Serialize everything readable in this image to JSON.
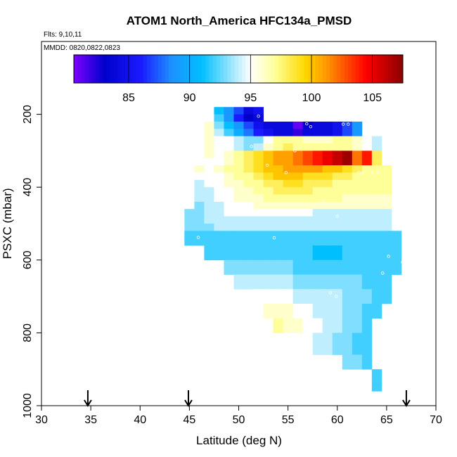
{
  "chart_data": {
    "type": "heatmap",
    "title": "ATOM1 North_America HFC134a_PMSD",
    "flights_label": "Flts: 9,10,11",
    "dates_label": "MMDD: 0820,0822,0823",
    "xlabel": "Latitude (deg N)",
    "ylabel": "PSXC (mbar)",
    "xlim": [
      30,
      70
    ],
    "ylim": [
      1000,
      0
    ],
    "x_ticks": [
      "30",
      "35",
      "40",
      "45",
      "50",
      "55",
      "60",
      "65",
      "70"
    ],
    "y_ticks": [
      "200",
      "400",
      "600",
      "800",
      "1000"
    ],
    "colorbar": {
      "min": 80.5,
      "max": 107.5,
      "ticks": [
        "85",
        "90",
        "95",
        "100",
        "105"
      ],
      "colors": [
        "#7f00ff",
        "#0000cc",
        "#1a1aff",
        "#1e90ff",
        "#00bfff",
        "#ffffff",
        "#ffff99",
        "#ffd700",
        "#ff8c00",
        "#ff0000",
        "#8b0000"
      ]
    },
    "flight_arrows_lat": [
      34.7,
      44.9,
      67.0
    ],
    "row_pressure_step": 20,
    "col_lat_step": 1,
    "rows": [
      {
        "p": 190,
        "lat0": 47,
        "values": [
          95,
          91,
          89,
          87,
          84,
          85
        ]
      },
      {
        "p": 210,
        "lat0": 47,
        "values": [
          95,
          92,
          89,
          86,
          83,
          84
        ]
      },
      {
        "p": 230,
        "lat0": 47,
        "values": [
          96,
          93,
          91,
          89,
          87,
          85,
          84,
          84,
          84,
          81,
          83,
          84,
          84,
          85,
          87,
          89
        ]
      },
      {
        "p": 250,
        "lat0": 47,
        "values": [
          96,
          94,
          92,
          90,
          88,
          86,
          85,
          84,
          84,
          82,
          84,
          84,
          84,
          85,
          87,
          89
        ]
      },
      {
        "p": 270,
        "lat0": 47,
        "values": [
          96,
          95,
          95,
          94,
          93,
          93,
          95,
          97,
          97,
          97,
          96,
          96,
          96,
          97,
          97,
          96,
          95,
          94
        ]
      },
      {
        "p": 290,
        "lat0": 47,
        "values": [
          96,
          95,
          95,
          94,
          93,
          94,
          96,
          97,
          98,
          97,
          97,
          97,
          97,
          97,
          97,
          96,
          95,
          94
        ]
      },
      {
        "p": 310,
        "lat0": 47,
        "values": [
          96,
          95,
          96,
          97,
          98,
          99,
          100,
          101,
          101,
          102,
          103,
          104,
          105,
          106,
          107,
          102,
          104,
          98
        ]
      },
      {
        "p": 330,
        "lat0": 47,
        "values": [
          95,
          95,
          96,
          97,
          98,
          99,
          100,
          101,
          101,
          102,
          103,
          104,
          105,
          106,
          107,
          102,
          104,
          98
        ]
      },
      {
        "p": 350,
        "lat0": 46,
        "values": [
          96,
          95,
          96,
          97,
          97,
          98,
          99,
          100,
          100,
          101,
          101,
          101,
          101,
          100,
          100,
          99,
          98,
          97,
          97,
          97
        ]
      },
      {
        "p": 370,
        "lat0": 46,
        "values": [
          95,
          95,
          95,
          96,
          97,
          97,
          98,
          99,
          100,
          100,
          100,
          99,
          99,
          99,
          98,
          98,
          97,
          97,
          97,
          97
        ]
      },
      {
        "p": 390,
        "lat0": 46,
        "values": [
          94,
          95,
          95,
          96,
          96,
          97,
          97,
          98,
          98,
          99,
          99,
          98,
          98,
          98,
          97,
          97,
          97,
          97,
          97,
          97
        ]
      },
      {
        "p": 410,
        "lat0": 46,
        "values": [
          94,
          94,
          95,
          95,
          96,
          96,
          97,
          97,
          98,
          98,
          98,
          98,
          97,
          97,
          97,
          97,
          97,
          97,
          97,
          97
        ]
      },
      {
        "p": 430,
        "lat0": 46,
        "values": [
          94,
          94,
          95,
          95,
          96,
          96,
          96,
          97,
          97,
          97,
          97,
          97,
          97,
          97,
          97,
          96,
          96,
          96,
          96,
          96
        ]
      },
      {
        "p": 450,
        "lat0": 46,
        "values": [
          93,
          94,
          94,
          95,
          95,
          95,
          96,
          96,
          96,
          96,
          96,
          96,
          96,
          96,
          96,
          96,
          96,
          96,
          96,
          96
        ]
      },
      {
        "p": 470,
        "lat0": 45,
        "values": [
          93,
          93,
          94,
          94,
          95,
          95,
          95,
          95,
          95,
          95,
          95,
          95,
          95,
          94,
          94,
          94,
          94,
          94,
          94,
          94,
          94
        ]
      },
      {
        "p": 490,
        "lat0": 45,
        "values": [
          93,
          93,
          94,
          94,
          94,
          94,
          94,
          94,
          94,
          94,
          94,
          94,
          94,
          94,
          94,
          94,
          94,
          94,
          94,
          94,
          94
        ]
      },
      {
        "p": 510,
        "lat0": 45,
        "values": [
          93,
          93,
          93,
          94,
          94,
          94,
          94,
          94,
          94,
          94,
          94,
          94,
          94,
          94,
          94,
          94,
          94,
          94,
          94,
          94,
          94
        ]
      },
      {
        "p": 530,
        "lat0": 45,
        "values": [
          92,
          92,
          92,
          92,
          92,
          92,
          92,
          92,
          92,
          92,
          92,
          92,
          92,
          92,
          92,
          92,
          92,
          92,
          92,
          92,
          92,
          92
        ]
      },
      {
        "p": 550,
        "lat0": 45,
        "values": [
          92,
          92,
          92,
          92,
          92,
          92,
          92,
          92,
          92,
          92,
          92,
          92,
          92,
          92,
          92,
          92,
          92,
          92,
          92,
          92,
          92,
          92
        ]
      },
      {
        "p": 570,
        "lat0": 47,
        "values": [
          92,
          92,
          92,
          92,
          92,
          92,
          92,
          92,
          92,
          92,
          92,
          91,
          91,
          91,
          92,
          92,
          92,
          92,
          92,
          92
        ]
      },
      {
        "p": 590,
        "lat0": 47,
        "values": [
          92,
          92,
          92,
          92,
          92,
          92,
          92,
          92,
          92,
          92,
          92,
          91,
          91,
          91,
          92,
          92,
          92,
          92,
          92,
          92
        ]
      },
      {
        "p": 610,
        "lat0": 49,
        "values": [
          93,
          93,
          93,
          93,
          93,
          93,
          93,
          92,
          92,
          92,
          92,
          92,
          92,
          92,
          92,
          92,
          92,
          92
        ]
      },
      {
        "p": 630,
        "lat0": 49,
        "values": [
          93,
          93,
          93,
          93,
          93,
          93,
          93,
          92,
          92,
          92,
          92,
          92,
          92,
          92,
          92,
          92,
          92,
          92
        ]
      },
      {
        "p": 650,
        "lat0": 50,
        "values": [
          94,
          94,
          94,
          94,
          94,
          94,
          93,
          93,
          93,
          93,
          93,
          93,
          93,
          92,
          92,
          92
        ]
      },
      {
        "p": 670,
        "lat0": 50,
        "values": [
          94,
          94,
          94,
          94,
          94,
          94,
          93,
          93,
          93,
          93,
          93,
          93,
          93,
          92,
          92,
          92
        ]
      },
      {
        "p": 690,
        "lat0": 52,
        "values": [
          95,
          95,
          95,
          95,
          94,
          94,
          94,
          94,
          94,
          93,
          93,
          93,
          92,
          92
        ]
      },
      {
        "p": 710,
        "lat0": 52,
        "values": [
          95,
          95,
          95,
          95,
          94,
          94,
          94,
          94,
          94,
          93,
          93,
          93,
          92,
          92
        ]
      },
      {
        "p": 730,
        "lat0": 53,
        "values": [
          96,
          96,
          96,
          95,
          95,
          94,
          94,
          94,
          93,
          93,
          92,
          92
        ]
      },
      {
        "p": 750,
        "lat0": 53,
        "values": [
          96,
          96,
          96,
          95,
          95,
          94,
          94,
          94,
          93,
          93,
          92,
          92
        ]
      },
      {
        "p": 770,
        "lat0": 54,
        "values": [
          97,
          96,
          96,
          95,
          95,
          94,
          94,
          93,
          93,
          92
        ]
      },
      {
        "p": 790,
        "lat0": 54,
        "values": [
          97,
          96,
          96,
          95,
          95,
          94,
          94,
          93,
          93,
          92
        ]
      },
      {
        "p": 810,
        "lat0": 58,
        "values": [
          94,
          94,
          93,
          93,
          92,
          92
        ]
      },
      {
        "p": 830,
        "lat0": 58,
        "values": [
          94,
          94,
          93,
          93,
          92,
          92
        ]
      },
      {
        "p": 850,
        "lat0": 58,
        "values": [
          94,
          94,
          93,
          93,
          92,
          92
        ]
      },
      {
        "p": 870,
        "lat0": 61,
        "values": [
          93,
          93,
          92
        ]
      },
      {
        "p": 890,
        "lat0": 61,
        "values": [
          93,
          93,
          92
        ]
      },
      {
        "p": 910,
        "lat0": 64,
        "values": [
          92
        ]
      },
      {
        "p": 930,
        "lat0": 64,
        "values": [
          92
        ]
      },
      {
        "p": 950,
        "lat0": 64,
        "values": [
          92
        ]
      }
    ],
    "sample_points": [
      [
        52.0,
        205
      ],
      [
        56.9,
        226
      ],
      [
        57.3,
        234
      ],
      [
        60.6,
        227
      ],
      [
        61.1,
        227
      ],
      [
        51.3,
        288
      ],
      [
        55.7,
        300
      ],
      [
        62.2,
        360
      ],
      [
        62.6,
        360
      ],
      [
        63.6,
        360
      ],
      [
        64.1,
        360
      ],
      [
        52.9,
        340
      ],
      [
        54.8,
        360
      ],
      [
        60.0,
        480
      ],
      [
        58.6,
        438
      ],
      [
        45.9,
        538
      ],
      [
        53.6,
        539
      ],
      [
        65.2,
        590
      ],
      [
        66.6,
        606
      ],
      [
        64.6,
        636
      ],
      [
        50.5,
        700
      ],
      [
        59.3,
        690
      ],
      [
        59.9,
        700
      ],
      [
        65.1,
        958
      ]
    ]
  }
}
